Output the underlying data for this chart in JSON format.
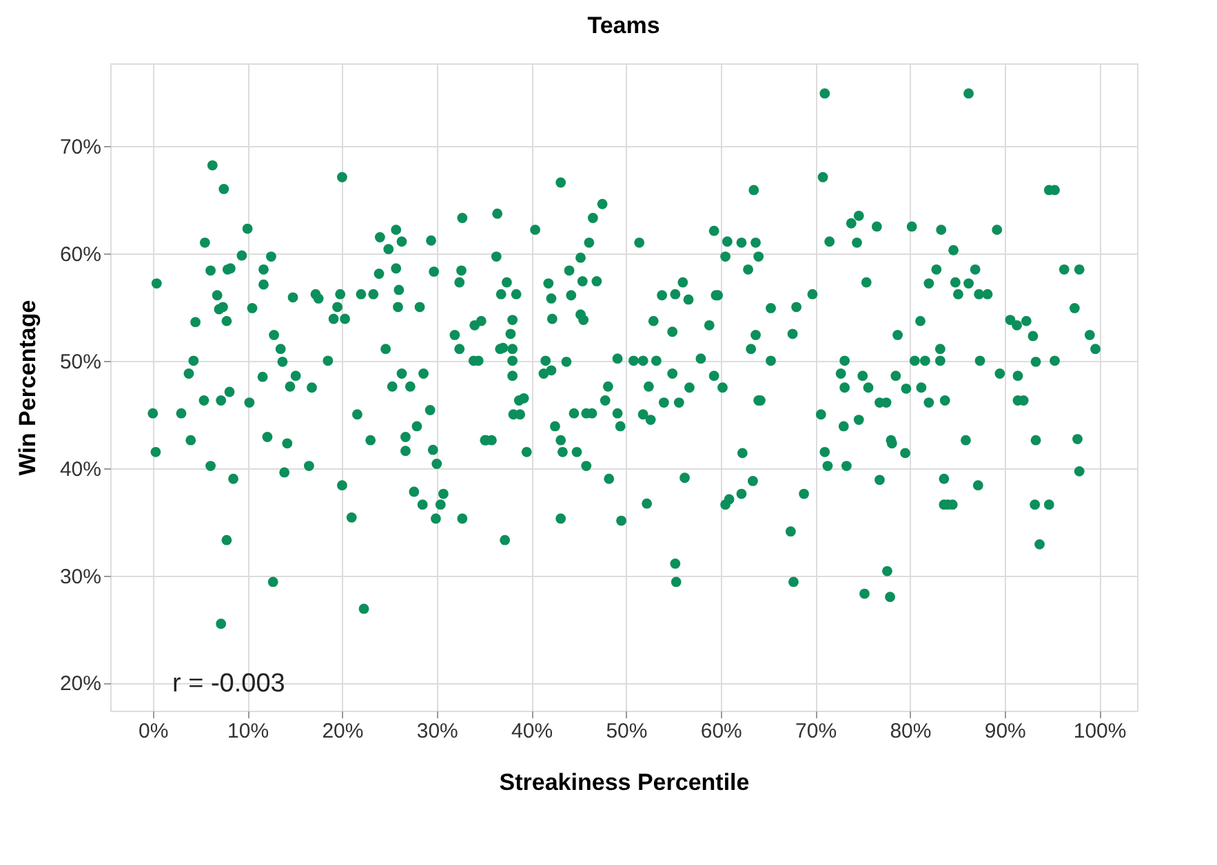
{
  "chart_data": {
    "type": "scatter",
    "title": "Teams",
    "xlabel": "Streakiness Percentile",
    "ylabel": "Win Percentage",
    "x": [
      0,
      0.3,
      0.4,
      3,
      3.8,
      4,
      4.5,
      4.3,
      5.4,
      5.5,
      6.1,
      6.3,
      6.1,
      6.8,
      7,
      7.2,
      7.2,
      7.4,
      7.5,
      7.8,
      7.9,
      7.8,
      8.1,
      8.2,
      8.5,
      9.4,
      10,
      10.2,
      10.5,
      11.6,
      11.7,
      11.7,
      12.1,
      12.5,
      12.7,
      12.8,
      13.5,
      13.7,
      13.9,
      14.2,
      14.5,
      14.8,
      15.1,
      16.5,
      16.8,
      17.2,
      17.5,
      18.5,
      19.1,
      19.5,
      20,
      20,
      19.8,
      20.3,
      21,
      21.6,
      22,
      22.3,
      23,
      23.3,
      23.9,
      24,
      24.6,
      24.9,
      25.7,
      26.3,
      25.3,
      25.9,
      25.7,
      26,
      26.3,
      26.7,
      26.7,
      27.2,
      27.6,
      27.9,
      28.2,
      28.5,
      28.6,
      29.4,
      29.3,
      29.6,
      29.7,
      29.9,
      30,
      30.4,
      30.7,
      31.9,
      32.4,
      32.6,
      32.4,
      32.7,
      32.7,
      33.9,
      34,
      34.4,
      34.7,
      35.1,
      35.2,
      35.8,
      36.3,
      36.4,
      36.7,
      36.8,
      37,
      37.2,
      37.4,
      37.8,
      38,
      38,
      38,
      38,
      38.1,
      38.4,
      38.7,
      38.8,
      39.2,
      39.5,
      40.4,
      41.3,
      41.5,
      41.8,
      42.1,
      42.1,
      42.2,
      42.5,
      43.1,
      43.1,
      43.1,
      43.3,
      43.7,
      44,
      44.2,
      44.5,
      44.8,
      45.2,
      45.2,
      45.4,
      45.5,
      45.8,
      45.8,
      46.1,
      46.4,
      46.5,
      46.9,
      47.5,
      47.8,
      48.1,
      48.2,
      49.1,
      49.1,
      49.4,
      49.5,
      50.8,
      51.4,
      51.8,
      51.8,
      52.2,
      52.4,
      52.6,
      52.9,
      53.2,
      53.8,
      54,
      54.9,
      54.9,
      55.2,
      55.2,
      55.3,
      55.6,
      56,
      56.2,
      56.6,
      56.7,
      57.9,
      58.8,
      59.3,
      59.3,
      59.5,
      59.7,
      60.2,
      60.5,
      60.5,
      60.7,
      60.9,
      62.2,
      62.2,
      62.3,
      62.9,
      63.2,
      63.5,
      63.7,
      63.7,
      64,
      64,
      63.4,
      64.2,
      65.3,
      65.3,
      67.6,
      67.4,
      67.7,
      68,
      68.8,
      69.7,
      70.6,
      70.8,
      71,
      71,
      71.3,
      71.5,
      72.7,
      73,
      73.1,
      73.1,
      73.3,
      73.8,
      74.4,
      74.6,
      74.6,
      75,
      75.2,
      75.6,
      75.4,
      76.5,
      76.8,
      76.8,
      77.5,
      77.6,
      77.9,
      78,
      78.1,
      78.5,
      78.7,
      79.5,
      79.6,
      80.2,
      80.5,
      81.1,
      81.2,
      81.6,
      82,
      82,
      82.8,
      83.2,
      83.2,
      83.3,
      83.6,
      83.7,
      83.6,
      84,
      84.5,
      84.6,
      84.8,
      85.1,
      85.9,
      86.2,
      86.2,
      86.9,
      87.2,
      87.3,
      87.4,
      88.2,
      89.2,
      89.5,
      90.6,
      91.3,
      91.4,
      91.4,
      92,
      92.3,
      93,
      93.2,
      93.3,
      93.3,
      93.7,
      94.7,
      94.7,
      95.3,
      95.3,
      96.3,
      97.4,
      97.9,
      97.7,
      97.9,
      99,
      99.6
    ],
    "series": [
      {
        "color": "#0b8f5b",
        "values": [
          45.1,
          41.5,
          57.2,
          45.1,
          48.8,
          42.6,
          53.6,
          50,
          46.3,
          61,
          58.4,
          68.2,
          40.2,
          56.1,
          54.8,
          25.5,
          46.3,
          55,
          66,
          33.3,
          58.5,
          53.7,
          47.1,
          58.6,
          39,
          59.8,
          62.3,
          46.1,
          54.9,
          48.5,
          58.5,
          57.1,
          42.9,
          59.7,
          29.4,
          52.4,
          51.1,
          49.9,
          39.6,
          42.3,
          47.6,
          55.9,
          48.6,
          40.2,
          47.5,
          56.2,
          55.8,
          50,
          53.9,
          55,
          67.1,
          38.4,
          56.2,
          53.9,
          35.4,
          45,
          56.2,
          26.9,
          42.6,
          56.2,
          58.1,
          61.5,
          51.1,
          60.4,
          62.2,
          61.1,
          47.6,
          55,
          58.6,
          56.6,
          48.8,
          42.9,
          41.6,
          47.6,
          37.8,
          43.9,
          55,
          36.6,
          48.8,
          61.2,
          45.4,
          41.7,
          58.3,
          35.3,
          40.4,
          36.6,
          37.6,
          52.4,
          51.1,
          58.4,
          57.3,
          63.3,
          35.3,
          50,
          53.3,
          50,
          53.7,
          42.6,
          42.6,
          42.6,
          59.7,
          63.7,
          51.1,
          56.2,
          51.2,
          33.3,
          57.3,
          52.5,
          51.1,
          50,
          53.8,
          48.6,
          45,
          56.2,
          46.3,
          45,
          46.5,
          41.5,
          62.2,
          48.8,
          50,
          57.2,
          55.8,
          49.1,
          53.9,
          43.9,
          66.6,
          35.3,
          42.6,
          41.5,
          49.9,
          58.4,
          56.1,
          45.1,
          41.5,
          59.6,
          54.3,
          57.4,
          53.8,
          45.1,
          40.2,
          61,
          45.1,
          63.3,
          57.4,
          64.6,
          46.3,
          47.6,
          39,
          50.2,
          45.1,
          43.9,
          35.1,
          50,
          61,
          45,
          50,
          36.7,
          47.6,
          44.5,
          53.7,
          50,
          56.1,
          46.1,
          48.8,
          52.7,
          56.2,
          31.1,
          29.4,
          46.1,
          57.3,
          39.1,
          55.7,
          47.5,
          50.2,
          53.3,
          62.1,
          48.6,
          56.1,
          56.1,
          47.5,
          59.7,
          36.6,
          61.1,
          37.1,
          61,
          37.6,
          41.4,
          58.5,
          51.1,
          65.9,
          61,
          52.4,
          46.3,
          59.7,
          38.8,
          46.3,
          54.9,
          50,
          52.5,
          34.1,
          29.4,
          55,
          37.6,
          56.2,
          45,
          67.1,
          41.5,
          74.9,
          40.2,
          61.1,
          48.8,
          43.9,
          50,
          47.5,
          40.2,
          62.8,
          61,
          63.5,
          44.5,
          48.6,
          28.3,
          47.5,
          57.3,
          62.5,
          46.1,
          38.9,
          46.1,
          30.4,
          28,
          42.6,
          42.3,
          48.6,
          52.4,
          41.4,
          47.4,
          62.5,
          50,
          53.7,
          47.5,
          50,
          57.2,
          46.1,
          58.5,
          51.1,
          50,
          62.2,
          39,
          46.3,
          36.6,
          36.6,
          36.6,
          60.3,
          57.3,
          56.2,
          42.6,
          74.9,
          57.2,
          58.5,
          38.4,
          56.2,
          50,
          56.2,
          62.2,
          48.8,
          53.8,
          53.3,
          48.6,
          46.3,
          46.3,
          53.7,
          52.3,
          36.6,
          42.6,
          49.9,
          32.9,
          65.9,
          36.6,
          65.9,
          50,
          58.5,
          54.9,
          58.5,
          42.7,
          39.7,
          52.4,
          51.1
        ]
      }
    ],
    "xlim": [
      -4.5,
      104
    ],
    "ylim": [
      17.4,
      77.7
    ],
    "xticks": [
      {
        "value": 0,
        "label": "0%"
      },
      {
        "value": 10,
        "label": "10%"
      },
      {
        "value": 20,
        "label": "20%"
      },
      {
        "value": 30,
        "label": "30%"
      },
      {
        "value": 40,
        "label": "40%"
      },
      {
        "value": 50,
        "label": "50%"
      },
      {
        "value": 60,
        "label": "60%"
      },
      {
        "value": 70,
        "label": "70%"
      },
      {
        "value": 80,
        "label": "80%"
      },
      {
        "value": 90,
        "label": "90%"
      },
      {
        "value": 100,
        "label": "100%"
      }
    ],
    "yticks": [
      {
        "value": 20,
        "label": "20%"
      },
      {
        "value": 30,
        "label": "30%"
      },
      {
        "value": 40,
        "label": "40%"
      },
      {
        "value": 50,
        "label": "50%"
      },
      {
        "value": 60,
        "label": "60%"
      },
      {
        "value": 70,
        "label": "70%"
      }
    ],
    "annotations": [
      "r =  -0.003"
    ],
    "grid": true,
    "marker": "circle",
    "legend": false
  }
}
